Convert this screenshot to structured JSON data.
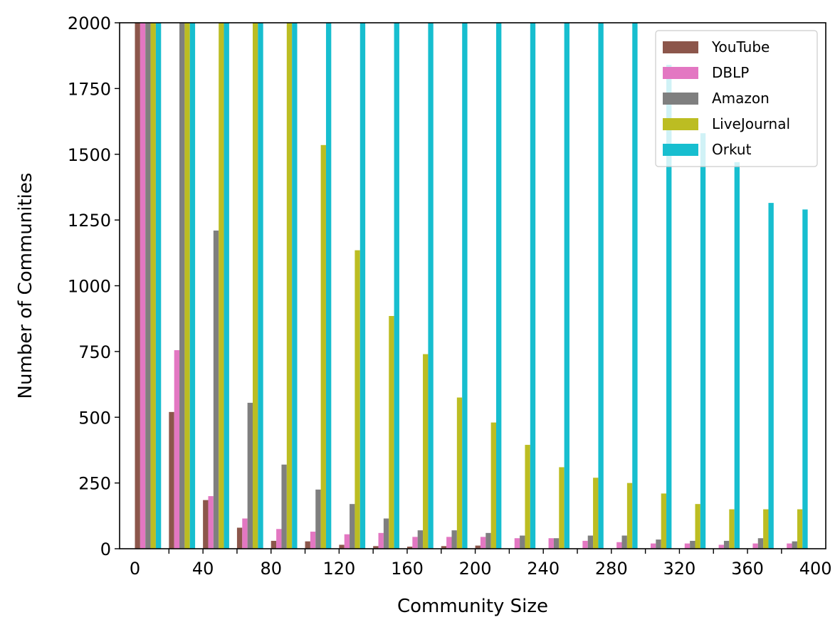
{
  "chart_data": {
    "type": "bar",
    "title": "",
    "xlabel": "Community Size",
    "ylabel": "Number of Communities",
    "ylim": [
      0,
      2000
    ],
    "grid": false,
    "legend_position": "top-right",
    "bin_width": 20,
    "bin_starts": [
      0,
      20,
      40,
      60,
      80,
      100,
      120,
      140,
      160,
      180,
      200,
      220,
      240,
      260,
      280,
      300,
      320,
      340,
      360,
      380
    ],
    "x_ticks": [
      0,
      40,
      80,
      120,
      160,
      200,
      240,
      280,
      320,
      360,
      400
    ],
    "x_tick_labels": [
      "0",
      "40",
      "80",
      "120",
      "160",
      "200",
      "240",
      "280",
      "320",
      "360",
      "400"
    ],
    "y_ticks": [
      0,
      250,
      500,
      750,
      1000,
      1250,
      1500,
      1750,
      2000
    ],
    "y_tick_labels": [
      "0",
      "250",
      "500",
      "750",
      "1000",
      "1250",
      "1500",
      "1750",
      "2000"
    ],
    "series": [
      {
        "name": "YouTube",
        "color": "#8c564b",
        "values": [
          2000,
          520,
          185,
          80,
          30,
          28,
          15,
          10,
          8,
          10,
          12,
          0,
          0,
          0,
          0,
          0,
          0,
          0,
          0,
          0
        ]
      },
      {
        "name": "DBLP",
        "color": "#e377c2",
        "values": [
          2000,
          755,
          200,
          115,
          75,
          65,
          55,
          60,
          45,
          45,
          45,
          40,
          40,
          30,
          25,
          20,
          20,
          15,
          20,
          20
        ]
      },
      {
        "name": "Amazon",
        "color": "#7f7f7f",
        "values": [
          2000,
          2000,
          1210,
          555,
          320,
          225,
          170,
          115,
          70,
          70,
          60,
          50,
          40,
          50,
          50,
          35,
          30,
          30,
          40,
          28
        ]
      },
      {
        "name": "LiveJournal",
        "color": "#bcbd22",
        "values": [
          2000,
          2000,
          2000,
          2000,
          2000,
          1535,
          1135,
          885,
          740,
          575,
          480,
          395,
          310,
          270,
          250,
          210,
          170,
          150,
          150,
          150
        ]
      },
      {
        "name": "Orkut",
        "color": "#17becf",
        "values": [
          2000,
          2000,
          2000,
          2000,
          2000,
          2000,
          2000,
          2000,
          2000,
          2000,
          2000,
          2000,
          2000,
          2000,
          2000,
          1840,
          1580,
          1470,
          1315,
          1290
        ]
      }
    ]
  }
}
